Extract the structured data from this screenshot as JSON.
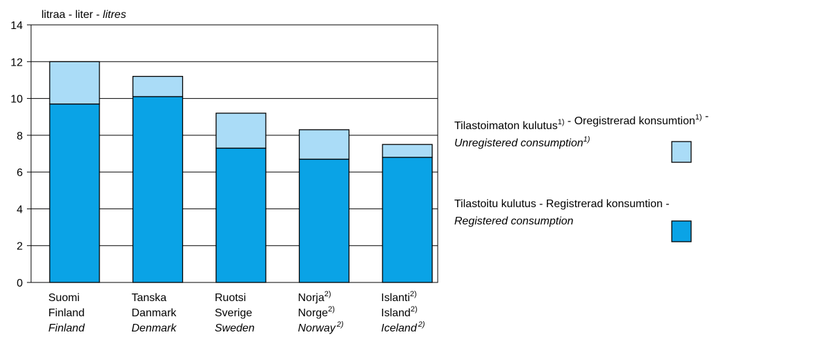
{
  "chart_data": {
    "type": "stacked_bar",
    "ylabel": [
      "litraa - liter - ",
      "litres"
    ],
    "categories": [
      [
        "Suomi",
        "Finland",
        "Finland"
      ],
      [
        "Tanska",
        "Danmark",
        "Denmark"
      ],
      [
        "Ruotsi",
        "Sverige",
        "Sweden"
      ],
      [
        "Norja",
        "Norge",
        "Norway"
      ],
      [
        "Islanti",
        "Island",
        "Iceland"
      ]
    ],
    "category_notes": [
      null,
      null,
      null,
      "2)",
      "2)"
    ],
    "series": [
      {
        "name": [
          [
            "Tilastoitu kulutus - Registrerad konsumtion -"
          ],
          [
            "Registered consumption"
          ]
        ],
        "color": "#0aa3e6",
        "values": [
          9.7,
          10.1,
          7.3,
          6.7,
          6.8
        ]
      },
      {
        "name": [
          [
            "Tilastoimaton kulutus",
            {
              "sup": "1)"
            },
            " - Oregistrerad konsumtion",
            {
              "sup": "1)"
            },
            " -"
          ],
          [
            "Unregistered consumption",
            {
              "sup": "1)"
            }
          ]
        ],
        "color": "#aadcf7",
        "values": [
          2.3,
          1.1,
          1.9,
          1.6,
          0.7
        ]
      }
    ],
    "ylim": [
      0,
      14
    ],
    "yticks": [
      0,
      2,
      4,
      6,
      8,
      10,
      12,
      14
    ],
    "grid": true
  }
}
